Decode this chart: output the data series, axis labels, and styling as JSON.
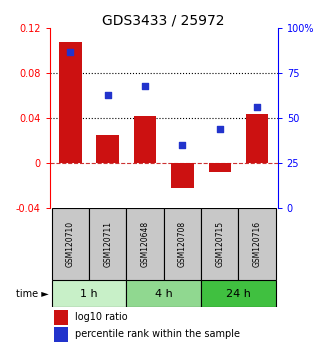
{
  "title": "GDS3433 / 25972",
  "samples": [
    "GSM120710",
    "GSM120711",
    "GSM120648",
    "GSM120708",
    "GSM120715",
    "GSM120716"
  ],
  "log10_ratio": [
    0.108,
    0.025,
    0.042,
    -0.022,
    -0.008,
    0.044
  ],
  "percentile_rank": [
    87,
    63,
    68,
    35,
    44,
    56
  ],
  "groups": [
    {
      "label": "1 h",
      "indices": [
        0,
        1
      ],
      "color": "#c8f0c8"
    },
    {
      "label": "4 h",
      "indices": [
        2,
        3
      ],
      "color": "#90d890"
    },
    {
      "label": "24 h",
      "indices": [
        4,
        5
      ],
      "color": "#40c040"
    }
  ],
  "bar_color": "#cc1111",
  "dot_color": "#2233cc",
  "ylim_left": [
    -0.04,
    0.12
  ],
  "ylim_right": [
    0,
    100
  ],
  "yticks_left": [
    -0.04,
    0.0,
    0.04,
    0.08,
    0.12
  ],
  "yticks_right": [
    0,
    25,
    50,
    75,
    100
  ],
  "ytick_labels_left": [
    "-0.04",
    "0",
    "0.04",
    "0.08",
    "0.12"
  ],
  "ytick_labels_right": [
    "0",
    "25",
    "50",
    "75",
    "100%"
  ],
  "hlines_dotted": [
    0.04,
    0.08
  ],
  "hline_dashed_val": 0.0,
  "bar_width": 0.6,
  "title_fontsize": 10,
  "tick_fontsize": 7,
  "sample_fontsize": 5.5,
  "group_fontsize": 8,
  "legend_fontsize": 7,
  "time_label": "time ►",
  "legend_items": [
    "log10 ratio",
    "percentile rank within the sample"
  ],
  "sample_box_color": "#c8c8c8",
  "n_samples": 6
}
